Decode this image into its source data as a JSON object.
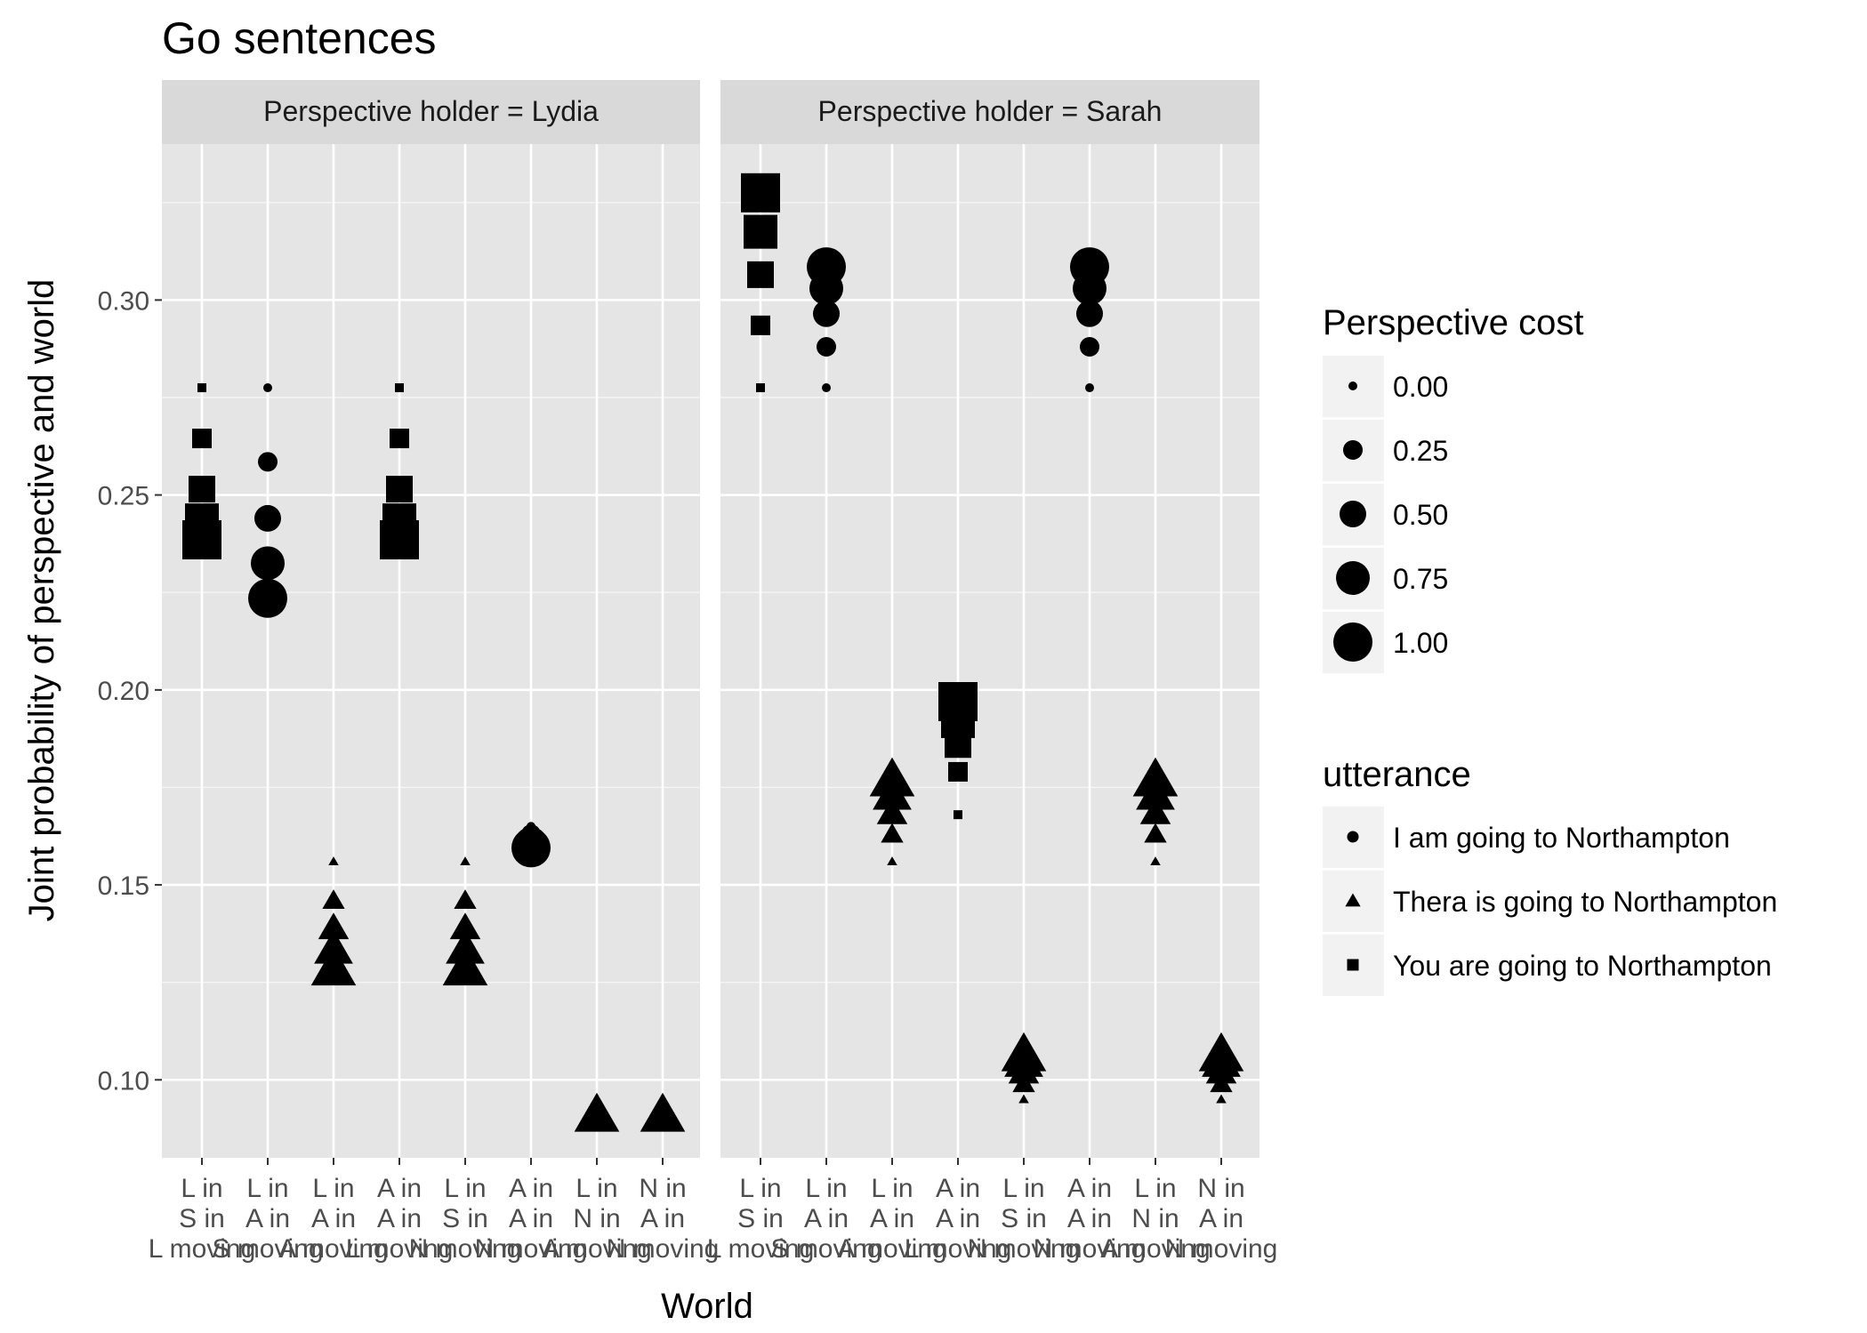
{
  "chart_data": {
    "type": "scatter",
    "title": "Go sentences",
    "xlabel": "World",
    "ylabel": "Joint probability of perspective and world",
    "ylim": [
      0.08,
      0.34
    ],
    "yticks": [
      0.1,
      0.15,
      0.2,
      0.25,
      0.3
    ],
    "ytick_labels": [
      "0.10",
      "0.15",
      "0.20",
      "0.25",
      "0.30"
    ],
    "grid": true,
    "legend_position": "right",
    "categories": [
      [
        "L in",
        "S in",
        "L moving"
      ],
      [
        "L in",
        "A in",
        "S moving"
      ],
      [
        "L in",
        "A in",
        "A moving"
      ],
      [
        "A in",
        "A in",
        "L moving"
      ],
      [
        "L in",
        "S in",
        "N moving"
      ],
      [
        "A in",
        "A in",
        "N moving"
      ],
      [
        "L in",
        "N in",
        "A moving"
      ],
      [
        "N in",
        "A in",
        "N moving"
      ]
    ],
    "facets": [
      {
        "label": "Perspective holder = Lydia",
        "points": [
          {
            "cat": 0,
            "utterance": "square",
            "values": [
              0.2775,
              0.2645,
              0.2515,
              0.2435,
              0.2385
            ]
          },
          {
            "cat": 1,
            "utterance": "circle",
            "values": [
              0.2775,
              0.2585,
              0.244,
              0.2325,
              0.2235
            ]
          },
          {
            "cat": 2,
            "utterance": "triangle",
            "values": [
              0.156,
              0.146,
              0.139,
              0.1335,
              0.1285
            ]
          },
          {
            "cat": 3,
            "utterance": "square",
            "values": [
              0.2775,
              0.2645,
              0.2515,
              0.2435,
              0.2385
            ]
          },
          {
            "cat": 4,
            "utterance": "triangle",
            "values": [
              0.156,
              0.146,
              0.139,
              0.1335,
              0.1285
            ]
          },
          {
            "cat": 5,
            "utterance": "circle",
            "values": [
              0.165,
              0.163,
              0.1615,
              0.1605,
              0.1595
            ]
          },
          {
            "cat": 6,
            "utterance": "triangle",
            "values": [
              0.091,
              0.091,
              0.091,
              0.091,
              0.091
            ]
          },
          {
            "cat": 7,
            "utterance": "triangle",
            "values": [
              0.091,
              0.091,
              0.091,
              0.091,
              0.091
            ]
          }
        ]
      },
      {
        "label": "Perspective holder = Sarah",
        "points": [
          {
            "cat": 0,
            "utterance": "square",
            "values": [
              0.2775,
              0.2935,
              0.3065,
              0.3175,
              0.3275
            ]
          },
          {
            "cat": 1,
            "utterance": "circle",
            "values": [
              0.2775,
              0.288,
              0.2965,
              0.303,
              0.3085
            ]
          },
          {
            "cat": 2,
            "utterance": "triangle",
            "values": [
              0.156,
              0.163,
              0.1685,
              0.173,
              0.177
            ]
          },
          {
            "cat": 3,
            "utterance": "square",
            "values": [
              0.168,
              0.179,
              0.186,
              0.192,
              0.197
            ]
          },
          {
            "cat": 4,
            "utterance": "triangle",
            "values": [
              0.095,
              0.099,
              0.102,
              0.1045,
              0.1065
            ]
          },
          {
            "cat": 5,
            "utterance": "circle",
            "values": [
              0.2775,
              0.288,
              0.2965,
              0.303,
              0.3085
            ]
          },
          {
            "cat": 6,
            "utterance": "triangle",
            "values": [
              0.156,
              0.163,
              0.1685,
              0.173,
              0.177
            ]
          },
          {
            "cat": 7,
            "utterance": "triangle",
            "values": [
              0.095,
              0.099,
              0.102,
              0.1045,
              0.1065
            ]
          }
        ]
      }
    ],
    "legend_cost": {
      "title": "Perspective cost",
      "levels": [
        0.0,
        0.25,
        0.5,
        0.75,
        1.0
      ],
      "labels": [
        "0.00",
        "0.25",
        "0.50",
        "0.75",
        "1.00"
      ]
    },
    "legend_utterance": {
      "title": "utterance",
      "items": [
        {
          "shape": "circle",
          "label": "I am going to Northampton"
        },
        {
          "shape": "triangle",
          "label": "Thera is going to Northampton"
        },
        {
          "shape": "square",
          "label": "You are going to Northampton"
        }
      ]
    },
    "colors": {
      "panel": "#e5e5e5",
      "strip": "#d9d9d9",
      "grid": "#ffffff",
      "point": "#000000",
      "tick_text": "#4d4d4d"
    }
  }
}
